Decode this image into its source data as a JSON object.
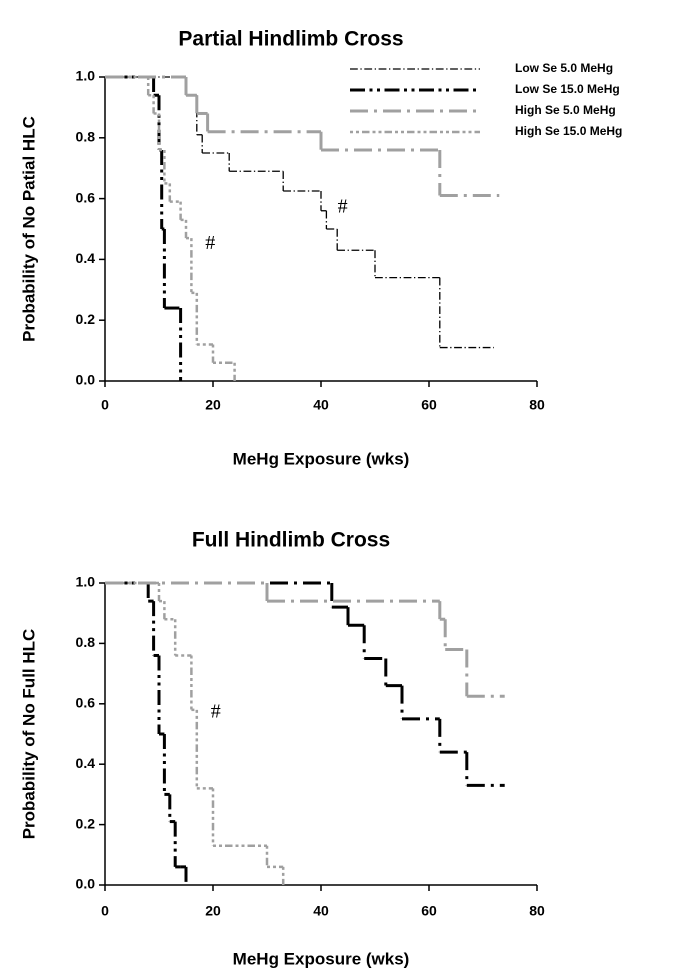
{
  "chart_data": [
    {
      "type": "step",
      "title": "Partial Hindlimb Cross",
      "xlabel": "MeHg Exposure (wks)",
      "ylabel": "Probability of No Patial HLC",
      "xlim": [
        0,
        80
      ],
      "xticks": [
        0,
        20,
        40,
        60,
        80
      ],
      "ylim": [
        0,
        1
      ],
      "yticks": [
        {
          "value": 0,
          "label": "0.0"
        },
        0.2,
        0.4,
        0.6,
        0.8,
        {
          "value": 1,
          "label": "1.0"
        }
      ],
      "legend": "upper right",
      "series": [
        {
          "name": "Low Se 5.0 MeHg",
          "color": "#000000",
          "linewidth": 1.3,
          "linestyle": "dashdot",
          "x": [
            0,
            15,
            17,
            18,
            23,
            33,
            40,
            41,
            43,
            50,
            62,
            72
          ],
          "values": [
            1,
            0.94,
            0.81,
            0.75,
            0.69,
            0.625,
            0.56,
            0.5,
            0.43,
            0.34,
            0.11,
            0.11
          ]
        },
        {
          "name": "Low Se 15.0 MeHg",
          "color": "#000000",
          "linewidth": 3,
          "linestyle": "dashdotdot",
          "x": [
            0,
            9,
            10,
            10.5,
            11,
            14
          ],
          "values": [
            1,
            0.94,
            0.76,
            0.5,
            0.24,
            0
          ]
        },
        {
          "name": "High Se 5.0 MeHg",
          "color": "#a0a0a0",
          "linewidth": 3,
          "linestyle": "dashdot",
          "x": [
            0,
            15,
            17,
            19,
            40,
            62,
            73
          ],
          "values": [
            1,
            0.94,
            0.88,
            0.82,
            0.76,
            0.61,
            0.61
          ]
        },
        {
          "name": "High Se 15.0 MeHg",
          "color": "#a0a0a0",
          "linewidth": 2.5,
          "linestyle": "dotted",
          "x": [
            0,
            8,
            9,
            10,
            11,
            12,
            14,
            15,
            16,
            17,
            20,
            24
          ],
          "values": [
            1,
            0.94,
            0.88,
            0.76,
            0.65,
            0.59,
            0.53,
            0.47,
            0.29,
            0.12,
            0.06,
            0
          ]
        }
      ],
      "annotations": [
        {
          "text": "#",
          "x": 44,
          "y": 0.57
        },
        {
          "text": "#",
          "x": 19.5,
          "y": 0.45
        }
      ]
    },
    {
      "type": "step",
      "title": "Full Hindlimb Cross",
      "xlabel": "MeHg Exposure (wks)",
      "ylabel": "Probability of No Full HLC",
      "xlim": [
        0,
        80
      ],
      "xticks": [
        0,
        20,
        40,
        60,
        80
      ],
      "ylim": [
        0,
        1
      ],
      "yticks": [
        {
          "value": 0,
          "label": "0.0"
        },
        0.2,
        0.4,
        0.6,
        0.8,
        {
          "value": 1,
          "label": "1.0"
        }
      ],
      "series": [
        {
          "color": "#000000",
          "linewidth": 3,
          "linestyle": "dashdot",
          "x": [
            0,
            42,
            45,
            48,
            52,
            55,
            62,
            67,
            74
          ],
          "values": [
            1,
            0.92,
            0.86,
            0.75,
            0.66,
            0.55,
            0.44,
            0.33,
            0.33
          ]
        },
        {
          "color": "#000000",
          "linewidth": 3,
          "linestyle": "dashdotdot",
          "x": [
            0,
            8,
            9,
            10,
            11,
            12,
            13,
            14,
            15
          ],
          "values": [
            1,
            0.94,
            0.76,
            0.5,
            0.3,
            0.21,
            0.06,
            0.06,
            0
          ]
        },
        {
          "color": "#a0a0a0",
          "linewidth": 3,
          "linestyle": "dashdot",
          "x": [
            0,
            30,
            62,
            63,
            67,
            74
          ],
          "values": [
            1,
            0.94,
            0.88,
            0.78,
            0.625,
            0.625
          ]
        },
        {
          "color": "#a0a0a0",
          "linewidth": 2.5,
          "linestyle": "dotted",
          "x": [
            0,
            10,
            11,
            13,
            16,
            17,
            20,
            30,
            33
          ],
          "values": [
            1,
            0.94,
            0.88,
            0.76,
            0.58,
            0.32,
            0.13,
            0.06,
            0
          ]
        }
      ],
      "annotations": [
        {
          "text": "#",
          "x": 20.5,
          "y": 0.57
        }
      ]
    }
  ]
}
